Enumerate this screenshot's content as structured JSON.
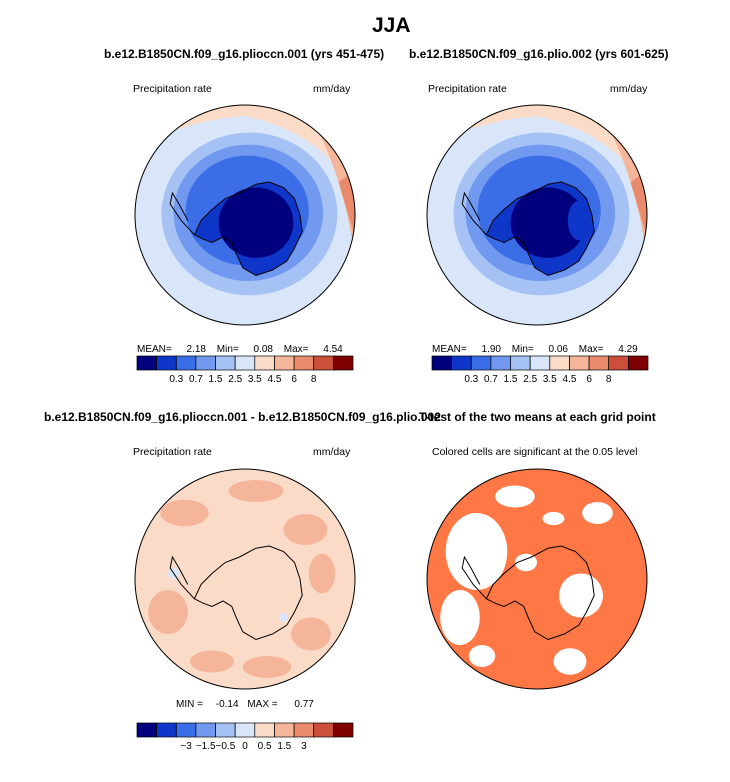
{
  "figure": {
    "title": "JJA"
  },
  "panels": [
    {
      "title": "b.e12.B1850CN.f09_g16.plioccn.001 (yrs 451-475)",
      "left_label": "Precipitation rate",
      "right_label": "mm/day",
      "stats": {
        "mean_label": "MEAN=",
        "mean": "2.18",
        "min_label": "Min=",
        "min": "0.08",
        "max_label": "Max=",
        "max": "4.54"
      }
    },
    {
      "title": "b.e12.B1850CN.f09_g16.plio.002 (yrs 601-625)",
      "left_label": "Precipitation rate",
      "right_label": "mm/day",
      "stats": {
        "mean_label": "MEAN=",
        "mean": "1.90",
        "min_label": "Min=",
        "min": "0.06",
        "max_label": "Max=",
        "max": "4.29"
      }
    },
    {
      "title": "b.e12.B1850CN.f09_g16.plioccn.001 - b.e12.B1850CN.f09_g16.plio.002",
      "left_label": "Precipitation rate",
      "right_label": "mm/day",
      "stats": {
        "min_label": "MIN =",
        "min": "-0.14",
        "max_label": "MAX =",
        "max": "0.77"
      }
    },
    {
      "title": "T-test of the two means at each grid point",
      "left_label": "Colored cells are significant at the 0.05 level",
      "right_label": ""
    }
  ],
  "chart_data": [
    {
      "type": "heatmap",
      "projection": "south polar stereographic",
      "title": "b.e12.B1850CN.f09_g16.plioccn.001 (yrs 451-475)",
      "variable": "Precipitation rate",
      "units": "mm/day",
      "stats": {
        "mean": 2.18,
        "min": 0.08,
        "max": 4.54
      },
      "colorbar": {
        "tick_labels": [
          "0.3",
          "0.7",
          "1.5",
          "2.5",
          "3.5",
          "4.5",
          "6",
          "8"
        ],
        "levels": [
          0.3,
          0.7,
          1.5,
          2.5,
          3.5,
          4.5,
          6,
          8
        ],
        "colors": [
          "#00007f",
          "#0e37c9",
          "#3b6ee6",
          "#7199ef",
          "#a6c2f5",
          "#d9e6fa",
          "#fadbc8",
          "#f5b59a",
          "#ea8a6c",
          "#cc4f3a",
          "#7f0000"
        ]
      }
    },
    {
      "type": "heatmap",
      "projection": "south polar stereographic",
      "title": "b.e12.B1850CN.f09_g16.plio.002 (yrs 601-625)",
      "variable": "Precipitation rate",
      "units": "mm/day",
      "stats": {
        "mean": 1.9,
        "min": 0.06,
        "max": 4.29
      },
      "colorbar": {
        "tick_labels": [
          "0.3",
          "0.7",
          "1.5",
          "2.5",
          "3.5",
          "4.5",
          "6",
          "8"
        ],
        "levels": [
          0.3,
          0.7,
          1.5,
          2.5,
          3.5,
          4.5,
          6,
          8
        ],
        "colors": [
          "#00007f",
          "#0e37c9",
          "#3b6ee6",
          "#7199ef",
          "#a6c2f5",
          "#d9e6fa",
          "#fadbc8",
          "#f5b59a",
          "#ea8a6c",
          "#cc4f3a",
          "#7f0000"
        ]
      }
    },
    {
      "type": "heatmap",
      "projection": "south polar stereographic",
      "title": "b.e12.B1850CN.f09_g16.plioccn.001 - b.e12.B1850CN.f09_g16.plio.002",
      "variable": "Precipitation rate",
      "units": "mm/day",
      "stats": {
        "min": -0.14,
        "max": 0.77
      },
      "colorbar": {
        "tick_labels": [
          "-3",
          "-1.5",
          "-0.5",
          "0",
          "0.5",
          "1.5",
          "3"
        ],
        "levels": [
          -3,
          -1.5,
          -0.5,
          0,
          0.5,
          1.5,
          3
        ],
        "colors": [
          "#00007f",
          "#0e37c9",
          "#3b6ee6",
          "#7199ef",
          "#a6c2f5",
          "#d9e6fa",
          "#fadbc8",
          "#f5b59a",
          "#ea8a6c",
          "#cc4f3a",
          "#7f0000"
        ]
      }
    },
    {
      "type": "heatmap",
      "projection": "south polar stereographic",
      "title": "T-test of the two means at each grid point",
      "note": "Colored cells are significant at the 0.05 level",
      "significant_color": "#ff7744"
    }
  ]
}
